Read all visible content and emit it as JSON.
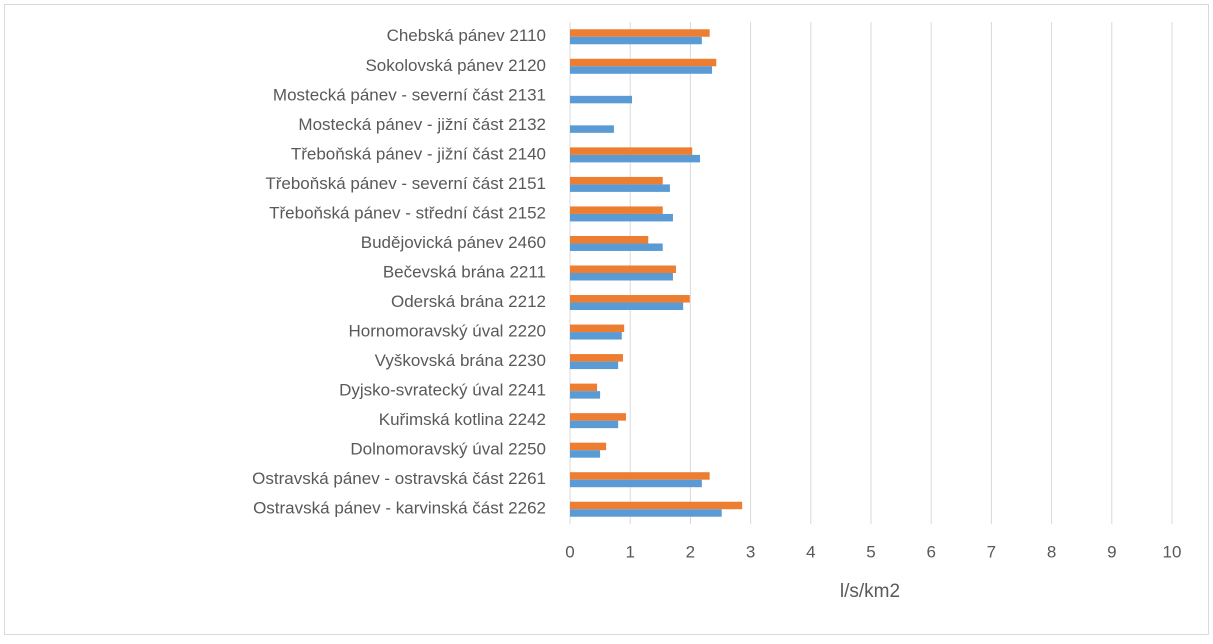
{
  "chart_data": {
    "type": "bar",
    "orientation": "horizontal",
    "categories": [
      "Chebská pánev 2110",
      "Sokolovská pánev 2120",
      "Mostecká pánev - severní část 2131",
      "Mostecká pánev - jižní část 2132",
      "Třeboňská pánev - jižní část 2140",
      "Třeboňská pánev - severní část 2151",
      "Třeboňská pánev - střední část 2152",
      "Budějovická pánev 2460",
      "Bečevská brána 2211",
      "Oderská brána 2212",
      "Hornomoravský úval 2220",
      "Vyškovská brána 2230",
      "Dyjsko-svratecký úval 2241",
      "Kuřimská kotlina 2242",
      "Dolnomoravský úval 2250",
      "Ostravská pánev - ostravská část 2261",
      "Ostravská pánev - karvinská část 2262"
    ],
    "series": [
      {
        "color": "#ed7d31",
        "values": [
          2.32,
          2.43,
          null,
          null,
          2.03,
          1.54,
          1.54,
          1.3,
          1.76,
          1.99,
          0.9,
          0.88,
          0.45,
          0.93,
          0.6,
          2.32,
          2.86
        ]
      },
      {
        "color": "#5b9bd5",
        "values": [
          2.19,
          2.36,
          1.03,
          0.73,
          2.16,
          1.66,
          1.71,
          1.54,
          1.71,
          1.88,
          0.86,
          0.8,
          0.5,
          0.8,
          0.5,
          2.19,
          2.52
        ]
      }
    ],
    "x_label": "l/s/km2",
    "xlim": [
      0,
      10
    ],
    "xticks": [
      0,
      1,
      2,
      3,
      4,
      5,
      6,
      7,
      8,
      9,
      10
    ],
    "grid": true
  }
}
